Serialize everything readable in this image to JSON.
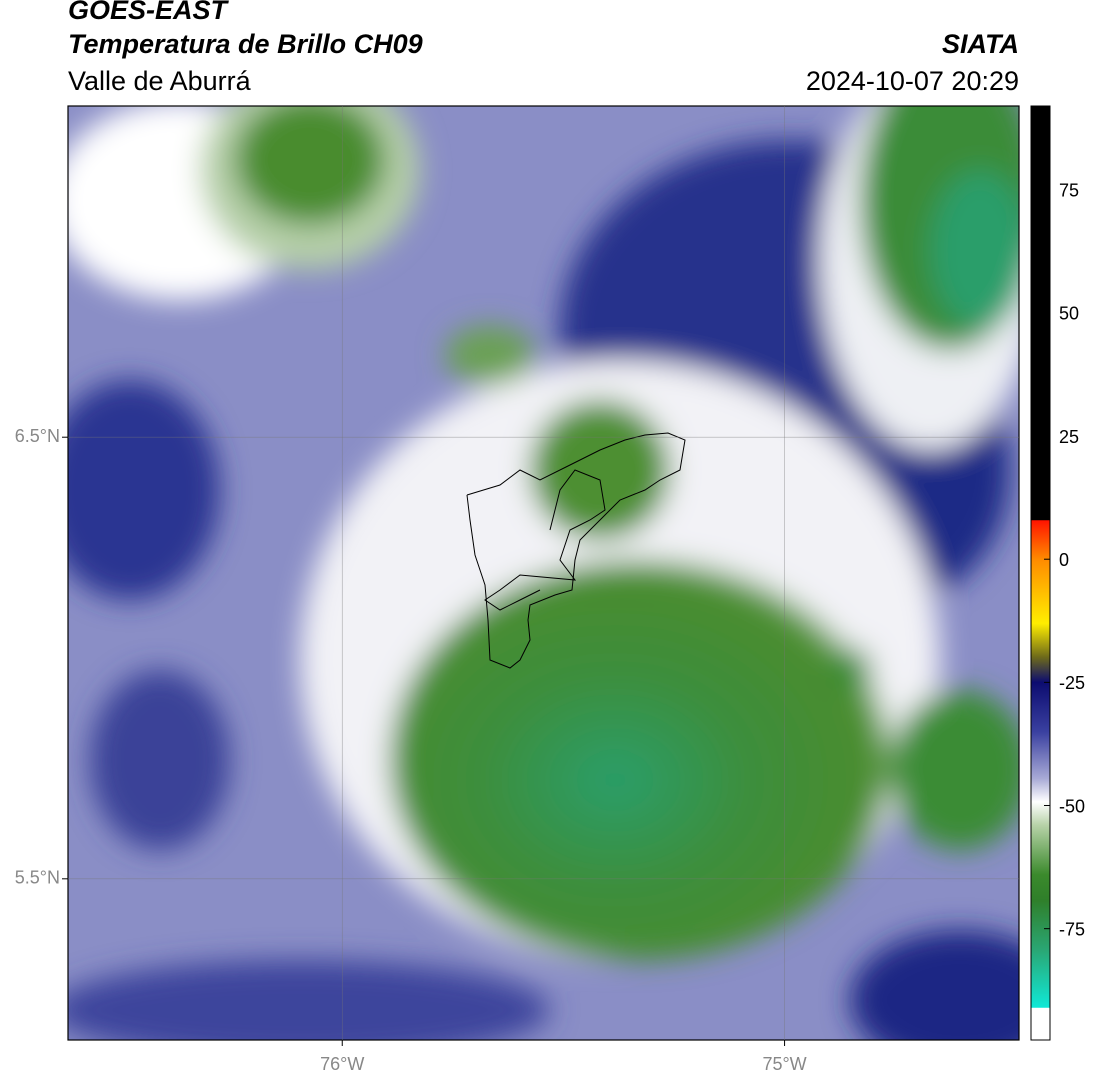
{
  "header": {
    "title": "GOES-EAST",
    "subtitle": "Temperatura de Brillo CH09",
    "source": "SIATA",
    "region": "Valle de Aburrá",
    "timestamp": "2024-10-07 20:29"
  },
  "map": {
    "xlim": [
      -76.62,
      -74.47
    ],
    "ylim": [
      5.135,
      7.25
    ],
    "xticks": [
      {
        "value": -76,
        "label": "76°W"
      },
      {
        "value": -75,
        "label": "75°W"
      }
    ],
    "yticks": [
      {
        "value": 6.5,
        "label": "6.5°N"
      },
      {
        "value": 5.5,
        "label": "5.5°N"
      }
    ],
    "grid": true
  },
  "colorbar": {
    "lim": [
      -97.6,
      92
    ],
    "ticks": [
      75,
      50,
      25,
      0,
      -25,
      -50,
      -75
    ]
  }
}
